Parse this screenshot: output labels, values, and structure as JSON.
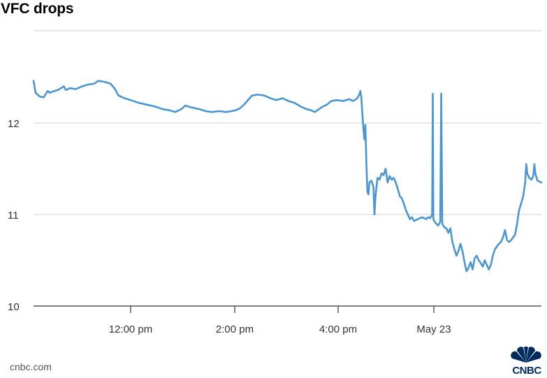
{
  "chart_data": {
    "type": "line",
    "title": "VFC drops",
    "xlabel": "",
    "ylabel": "",
    "ylim": [
      10,
      12.8
    ],
    "yticks": [
      10,
      11,
      12
    ],
    "xticks": [
      "12:00 pm",
      "2:00 pm",
      "4:00 pm",
      "May 23"
    ],
    "grid": "horizontal",
    "series": [
      {
        "color": "#4a96d2",
        "points": [
          [
            0,
            12.46
          ],
          [
            1,
            12.33
          ],
          [
            3,
            12.29
          ],
          [
            5,
            12.28
          ],
          [
            7,
            12.35
          ],
          [
            8,
            12.33
          ],
          [
            9,
            12.34
          ],
          [
            12,
            12.36
          ],
          [
            15,
            12.4
          ],
          [
            16,
            12.36
          ],
          [
            18,
            12.38
          ],
          [
            21,
            12.37
          ],
          [
            24,
            12.4
          ],
          [
            27,
            12.42
          ],
          [
            30,
            12.43
          ],
          [
            32,
            12.46
          ],
          [
            35,
            12.45
          ],
          [
            38,
            12.43
          ],
          [
            40,
            12.38
          ],
          [
            42,
            12.3
          ],
          [
            45,
            12.27
          ],
          [
            48,
            12.25
          ],
          [
            52,
            12.22
          ],
          [
            56,
            12.2
          ],
          [
            60,
            12.18
          ],
          [
            64,
            12.15
          ],
          [
            67,
            12.14
          ],
          [
            70,
            12.12
          ],
          [
            73,
            12.15
          ],
          [
            75,
            12.19
          ],
          [
            78,
            12.17
          ],
          [
            82,
            12.15
          ],
          [
            85,
            12.13
          ],
          [
            88,
            12.12
          ],
          [
            92,
            12.13
          ],
          [
            95,
            12.12
          ],
          [
            98,
            12.13
          ],
          [
            100,
            12.14
          ],
          [
            102,
            12.16
          ],
          [
            104,
            12.2
          ],
          [
            106,
            12.25
          ],
          [
            108,
            12.3
          ],
          [
            111,
            12.31
          ],
          [
            114,
            12.3
          ],
          [
            117,
            12.27
          ],
          [
            120,
            12.25
          ],
          [
            123,
            12.27
          ],
          [
            126,
            12.24
          ],
          [
            129,
            12.22
          ],
          [
            132,
            12.18
          ],
          [
            135,
            12.15
          ],
          [
            137,
            12.14
          ],
          [
            139,
            12.12
          ],
          [
            141,
            12.15
          ],
          [
            143,
            12.18
          ],
          [
            145,
            12.2
          ],
          [
            147,
            12.24
          ],
          [
            150,
            12.25
          ],
          [
            153,
            12.24
          ],
          [
            156,
            12.26
          ],
          [
            158,
            12.24
          ],
          [
            160,
            12.27
          ],
          [
            161,
            12.31
          ],
          [
            161.5,
            12.35
          ],
          [
            162,
            12.28
          ],
          [
            162.5,
            12.1
          ],
          [
            163,
            11.95
          ],
          [
            163.5,
            11.82
          ],
          [
            164,
            11.98
          ],
          [
            164.5,
            11.55
          ],
          [
            165,
            11.25
          ],
          [
            165.5,
            11.22
          ],
          [
            166,
            11.35
          ],
          [
            167,
            11.37
          ],
          [
            168,
            11.3
          ],
          [
            168.5,
            11.0
          ],
          [
            169,
            11.2
          ],
          [
            170,
            11.4
          ],
          [
            171,
            11.38
          ],
          [
            172,
            11.45
          ],
          [
            173,
            11.43
          ],
          [
            174,
            11.5
          ],
          [
            175,
            11.35
          ],
          [
            176,
            11.42
          ],
          [
            177,
            11.38
          ],
          [
            178,
            11.4
          ],
          [
            179,
            11.35
          ],
          [
            180,
            11.28
          ],
          [
            181,
            11.2
          ],
          [
            182,
            11.18
          ],
          [
            183,
            11.12
          ],
          [
            184,
            11.05
          ],
          [
            185,
            11.0
          ],
          [
            186,
            10.95
          ],
          [
            187,
            10.97
          ],
          [
            188,
            10.93
          ],
          [
            190,
            10.95
          ],
          [
            192,
            10.97
          ],
          [
            194,
            10.95
          ],
          [
            195,
            10.97
          ],
          [
            196,
            10.96
          ],
          [
            197,
            11.0
          ],
          [
            197.3,
            12.32
          ],
          [
            197.6,
            10.95
          ],
          [
            198,
            10.93
          ],
          [
            199,
            10.9
          ],
          [
            200,
            10.88
          ],
          [
            201,
            10.92
          ],
          [
            201.5,
            12.32
          ],
          [
            202,
            10.9
          ],
          [
            203,
            10.86
          ],
          [
            204,
            10.85
          ],
          [
            205,
            10.8
          ],
          [
            206,
            10.85
          ],
          [
            207,
            10.7
          ],
          [
            208,
            10.62
          ],
          [
            209,
            10.55
          ],
          [
            210,
            10.6
          ],
          [
            211,
            10.68
          ],
          [
            212,
            10.6
          ],
          [
            213,
            10.48
          ],
          [
            214,
            10.38
          ],
          [
            215,
            10.42
          ],
          [
            216,
            10.48
          ],
          [
            217,
            10.4
          ],
          [
            218,
            10.52
          ],
          [
            219,
            10.55
          ],
          [
            220,
            10.5
          ],
          [
            221,
            10.47
          ],
          [
            222,
            10.43
          ],
          [
            223,
            10.5
          ],
          [
            224,
            10.45
          ],
          [
            225,
            10.4
          ],
          [
            226,
            10.45
          ],
          [
            227,
            10.55
          ],
          [
            228,
            10.62
          ],
          [
            229,
            10.65
          ],
          [
            230,
            10.68
          ],
          [
            231,
            10.7
          ],
          [
            232,
            10.75
          ],
          [
            233,
            10.83
          ],
          [
            234,
            10.72
          ],
          [
            235,
            10.7
          ],
          [
            236,
            10.72
          ],
          [
            237,
            10.75
          ],
          [
            238,
            10.78
          ],
          [
            239,
            10.9
          ],
          [
            240,
            11.05
          ],
          [
            241,
            11.12
          ],
          [
            242,
            11.2
          ],
          [
            243,
            11.35
          ],
          [
            243.5,
            11.55
          ],
          [
            244,
            11.45
          ],
          [
            245,
            11.4
          ],
          [
            246,
            11.38
          ],
          [
            247,
            11.42
          ],
          [
            247.5,
            11.55
          ],
          [
            248,
            11.45
          ],
          [
            249,
            11.37
          ],
          [
            250,
            11.36
          ],
          [
            251,
            11.35
          ]
        ]
      }
    ]
  },
  "footer": {
    "source": "cnbc.com",
    "logo_text": "CNBC"
  }
}
